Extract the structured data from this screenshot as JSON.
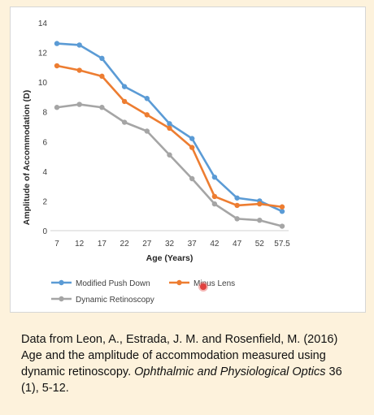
{
  "chart_data": {
    "type": "line",
    "x": [
      "7",
      "12",
      "17",
      "22",
      "27",
      "32",
      "37",
      "42",
      "47",
      "52",
      "57.5"
    ],
    "xlabel": "Age (Years)",
    "ylabel": "Amplitude of Accommodation (D)",
    "ylim": [
      0,
      14
    ],
    "yticks": [
      "0",
      "2",
      "4",
      "6",
      "8",
      "10",
      "12",
      "14"
    ],
    "grid": false,
    "legend_position": "bottom",
    "series": [
      {
        "name": "Modified Push Down",
        "color": "#5b9bd5",
        "values": [
          12.6,
          12.5,
          11.6,
          9.7,
          8.9,
          7.2,
          6.2,
          3.6,
          2.2,
          2.0,
          1.3
        ]
      },
      {
        "name": "Minus Lens",
        "color": "#ed7d31",
        "values": [
          11.1,
          10.8,
          10.4,
          8.7,
          7.8,
          6.9,
          5.6,
          2.3,
          1.7,
          1.8,
          1.6
        ]
      },
      {
        "name": "Dynamic Retinoscopy",
        "color": "#a5a5a5",
        "values": [
          8.3,
          8.5,
          8.3,
          7.3,
          6.7,
          5.1,
          3.5,
          1.8,
          0.8,
          0.7,
          0.3
        ]
      }
    ]
  },
  "caption": {
    "text_1": "Data from Leon, A., Estrada, J. M. and Rosenfield, M. (2016) Age and the amplitude of accommodation measured using dynamic retinoscopy. ",
    "journal": "Ophthalmic and Physiological Optics",
    "text_2": " 36 (1), 5-12."
  }
}
